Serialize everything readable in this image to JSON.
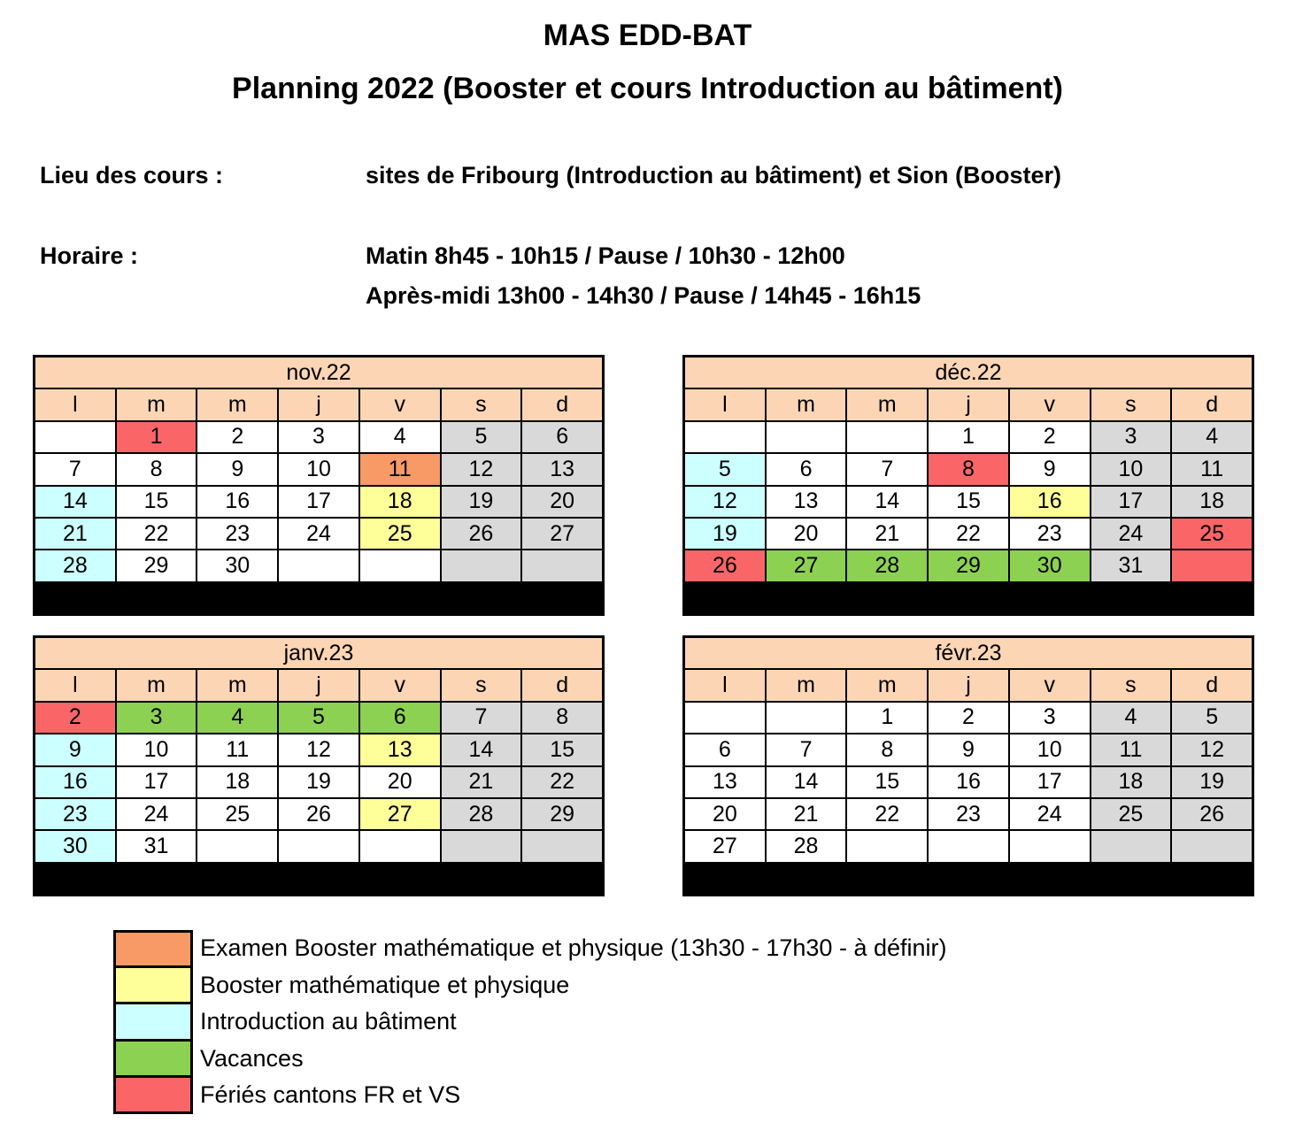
{
  "header": {
    "title": "MAS EDD-BAT",
    "subtitle": "Planning 2022 (Booster et cours Introduction au bâtiment)"
  },
  "info": {
    "lieu_label": "Lieu des cours :",
    "lieu_value": "sites de Fribourg (Introduction au bâtiment) et Sion (Booster)",
    "horaire_label": "Horaire :",
    "horaire_line1": "Matin 8h45 - 10h15 / Pause / 10h30 - 12h00",
    "horaire_line2": "Après-midi 13h00 - 14h30 / Pause / 14h45 - 16h15"
  },
  "weekdays": [
    "l",
    "m",
    "m",
    "j",
    "v",
    "s",
    "d"
  ],
  "colors": {
    "header_bg": "#fcd5b4",
    "weekend": "#d9d9d9",
    "exam": "#f79a66",
    "boost": "#ffff99",
    "intro": "#ccffff",
    "vac": "#8cd152",
    "ferie": "#fa6668"
  },
  "months": [
    {
      "name": "nov.22",
      "weeks": [
        [
          {
            "d": ""
          },
          {
            "d": "1",
            "c": "ferie"
          },
          {
            "d": "2"
          },
          {
            "d": "3"
          },
          {
            "d": "4"
          },
          {
            "d": "5",
            "c": "we"
          },
          {
            "d": "6",
            "c": "we"
          }
        ],
        [
          {
            "d": "7"
          },
          {
            "d": "8"
          },
          {
            "d": "9"
          },
          {
            "d": "10"
          },
          {
            "d": "11",
            "c": "exam"
          },
          {
            "d": "12",
            "c": "we"
          },
          {
            "d": "13",
            "c": "we"
          }
        ],
        [
          {
            "d": "14",
            "c": "intro"
          },
          {
            "d": "15"
          },
          {
            "d": "16"
          },
          {
            "d": "17"
          },
          {
            "d": "18",
            "c": "boost"
          },
          {
            "d": "19",
            "c": "we"
          },
          {
            "d": "20",
            "c": "we"
          }
        ],
        [
          {
            "d": "21",
            "c": "intro"
          },
          {
            "d": "22"
          },
          {
            "d": "23"
          },
          {
            "d": "24"
          },
          {
            "d": "25",
            "c": "boost"
          },
          {
            "d": "26",
            "c": "we"
          },
          {
            "d": "27",
            "c": "we"
          }
        ],
        [
          {
            "d": "28",
            "c": "intro"
          },
          {
            "d": "29"
          },
          {
            "d": "30"
          },
          {
            "d": ""
          },
          {
            "d": ""
          },
          {
            "d": "",
            "c": "we"
          },
          {
            "d": "",
            "c": "we"
          }
        ]
      ]
    },
    {
      "name": "déc.22",
      "weeks": [
        [
          {
            "d": ""
          },
          {
            "d": ""
          },
          {
            "d": ""
          },
          {
            "d": "1"
          },
          {
            "d": "2"
          },
          {
            "d": "3",
            "c": "we"
          },
          {
            "d": "4",
            "c": "we"
          }
        ],
        [
          {
            "d": "5",
            "c": "intro"
          },
          {
            "d": "6"
          },
          {
            "d": "7"
          },
          {
            "d": "8",
            "c": "ferie"
          },
          {
            "d": "9"
          },
          {
            "d": "10",
            "c": "we"
          },
          {
            "d": "11",
            "c": "we"
          }
        ],
        [
          {
            "d": "12",
            "c": "intro"
          },
          {
            "d": "13"
          },
          {
            "d": "14"
          },
          {
            "d": "15"
          },
          {
            "d": "16",
            "c": "boost"
          },
          {
            "d": "17",
            "c": "we"
          },
          {
            "d": "18",
            "c": "we"
          }
        ],
        [
          {
            "d": "19",
            "c": "intro"
          },
          {
            "d": "20"
          },
          {
            "d": "21"
          },
          {
            "d": "22"
          },
          {
            "d": "23"
          },
          {
            "d": "24",
            "c": "we"
          },
          {
            "d": "25",
            "c": "ferie"
          }
        ],
        [
          {
            "d": "26",
            "c": "ferie"
          },
          {
            "d": "27",
            "c": "vac"
          },
          {
            "d": "28",
            "c": "vac"
          },
          {
            "d": "29",
            "c": "vac"
          },
          {
            "d": "30",
            "c": "vac"
          },
          {
            "d": "31",
            "c": "we"
          },
          {
            "d": "",
            "c": "ferie"
          }
        ]
      ]
    },
    {
      "name": "janv.23",
      "weeks": [
        [
          {
            "d": "2",
            "c": "ferie"
          },
          {
            "d": "3",
            "c": "vac"
          },
          {
            "d": "4",
            "c": "vac"
          },
          {
            "d": "5",
            "c": "vac"
          },
          {
            "d": "6",
            "c": "vac"
          },
          {
            "d": "7",
            "c": "we"
          },
          {
            "d": "8",
            "c": "we"
          }
        ],
        [
          {
            "d": "9",
            "c": "intro"
          },
          {
            "d": "10"
          },
          {
            "d": "11"
          },
          {
            "d": "12"
          },
          {
            "d": "13",
            "c": "boost"
          },
          {
            "d": "14",
            "c": "we"
          },
          {
            "d": "15",
            "c": "we"
          }
        ],
        [
          {
            "d": "16",
            "c": "intro"
          },
          {
            "d": "17"
          },
          {
            "d": "18"
          },
          {
            "d": "19"
          },
          {
            "d": "20"
          },
          {
            "d": "21",
            "c": "we"
          },
          {
            "d": "22",
            "c": "we"
          }
        ],
        [
          {
            "d": "23",
            "c": "intro"
          },
          {
            "d": "24"
          },
          {
            "d": "25"
          },
          {
            "d": "26"
          },
          {
            "d": "27",
            "c": "boost"
          },
          {
            "d": "28",
            "c": "we"
          },
          {
            "d": "29",
            "c": "we"
          }
        ],
        [
          {
            "d": "30",
            "c": "intro"
          },
          {
            "d": "31"
          },
          {
            "d": ""
          },
          {
            "d": ""
          },
          {
            "d": ""
          },
          {
            "d": "",
            "c": "we"
          },
          {
            "d": "",
            "c": "we"
          }
        ]
      ]
    },
    {
      "name": "févr.23",
      "weeks": [
        [
          {
            "d": ""
          },
          {
            "d": ""
          },
          {
            "d": "1"
          },
          {
            "d": "2"
          },
          {
            "d": "3"
          },
          {
            "d": "4",
            "c": "we"
          },
          {
            "d": "5",
            "c": "we"
          }
        ],
        [
          {
            "d": "6"
          },
          {
            "d": "7"
          },
          {
            "d": "8"
          },
          {
            "d": "9"
          },
          {
            "d": "10"
          },
          {
            "d": "11",
            "c": "we"
          },
          {
            "d": "12",
            "c": "we"
          }
        ],
        [
          {
            "d": "13"
          },
          {
            "d": "14"
          },
          {
            "d": "15"
          },
          {
            "d": "16"
          },
          {
            "d": "17"
          },
          {
            "d": "18",
            "c": "we"
          },
          {
            "d": "19",
            "c": "we"
          }
        ],
        [
          {
            "d": "20"
          },
          {
            "d": "21"
          },
          {
            "d": "22"
          },
          {
            "d": "23"
          },
          {
            "d": "24"
          },
          {
            "d": "25",
            "c": "we"
          },
          {
            "d": "26",
            "c": "we"
          }
        ],
        [
          {
            "d": "27"
          },
          {
            "d": "28"
          },
          {
            "d": ""
          },
          {
            "d": ""
          },
          {
            "d": ""
          },
          {
            "d": "",
            "c": "we"
          },
          {
            "d": "",
            "c": "we"
          }
        ]
      ]
    }
  ],
  "legend": [
    {
      "key": "exam",
      "label": "Examen Booster mathématique et physique (13h30 - 17h30 - à définir)"
    },
    {
      "key": "boost",
      "label": "Booster mathématique et physique"
    },
    {
      "key": "intro",
      "label": "Introduction au bâtiment"
    },
    {
      "key": "vac",
      "label": "Vacances"
    },
    {
      "key": "ferie",
      "label": "Fériés cantons FR et VS"
    }
  ]
}
